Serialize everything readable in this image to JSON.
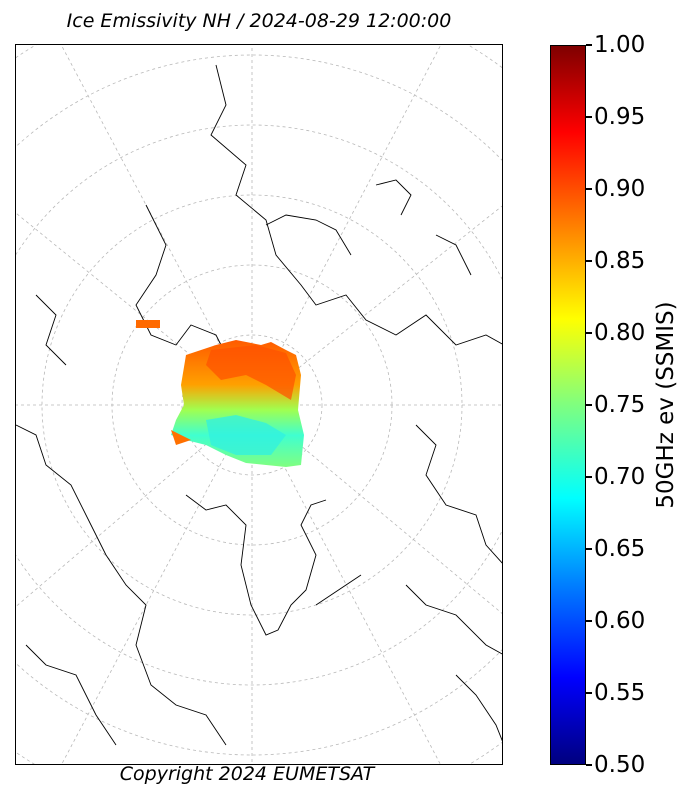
{
  "title": "Ice Emissivity NH / 2024-08-29 12:00:00",
  "copyright": "Copyright 2024 EUMETSAT",
  "colorbar": {
    "label": "50GHz ev (SSMIS)",
    "min": 0.5,
    "max": 1.0,
    "ticks": [
      "1.00",
      "0.95",
      "0.90",
      "0.85",
      "0.80",
      "0.75",
      "0.70",
      "0.65",
      "0.60",
      "0.55",
      "0.50"
    ],
    "colormap": "jet"
  },
  "map": {
    "projection": "north-polar-stereographic",
    "graticule": "dashed-grey",
    "coastline_color": "#000000"
  }
}
